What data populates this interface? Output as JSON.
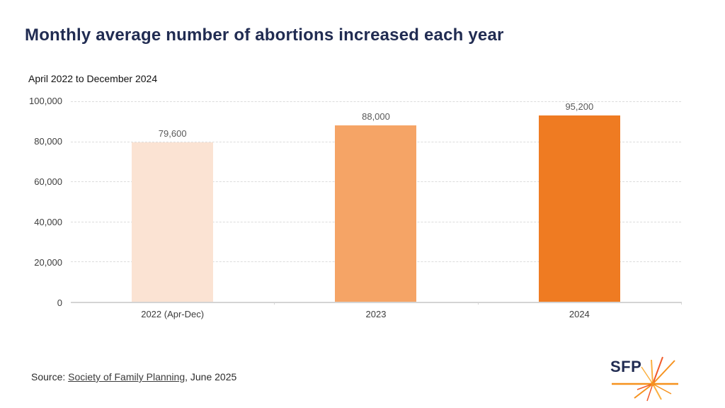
{
  "header": {
    "title": "Monthly average number of abortions increased each year",
    "subtitle": "April 2022 to December 2024"
  },
  "chart_data": {
    "type": "bar",
    "categories": [
      "2022 (Apr-Dec)",
      "2023",
      "2024"
    ],
    "values": [
      79600,
      88000,
      95200
    ],
    "value_labels": [
      "79,600",
      "88,000",
      "95,200"
    ],
    "bar_colors": [
      "#FBE3D3",
      "#F5A466",
      "#EF7B22"
    ],
    "title": "Monthly average number of abortions increased each year",
    "subtitle": "April 2022 to December 2024",
    "xlabel": "",
    "ylabel": "",
    "ylim": [
      0,
      100000
    ],
    "yticks": [
      {
        "label": "100,000",
        "value": 100000
      },
      {
        "label": "80,000",
        "value": 80000
      },
      {
        "label": "60,000",
        "value": 60000
      },
      {
        "label": "40,000",
        "value": 40000
      },
      {
        "label": "20,000",
        "value": 20000
      },
      {
        "label": "0",
        "value": 0
      }
    ],
    "grid": "horizontal-dashed",
    "legend": "none"
  },
  "footer": {
    "source_prefix": "Source: ",
    "source_link": "Society of Family Planning",
    "source_suffix": ", June 2025",
    "logo_text": "SFP"
  },
  "colors": {
    "title_navy": "#212C52",
    "grid": "#DCDCDC",
    "axis_text": "#3D3D3D",
    "data_label": "#595959",
    "logo_orange": "#F6921E",
    "logo_orange_light": "#FBB040",
    "logo_orange_deep": "#F15A29"
  }
}
